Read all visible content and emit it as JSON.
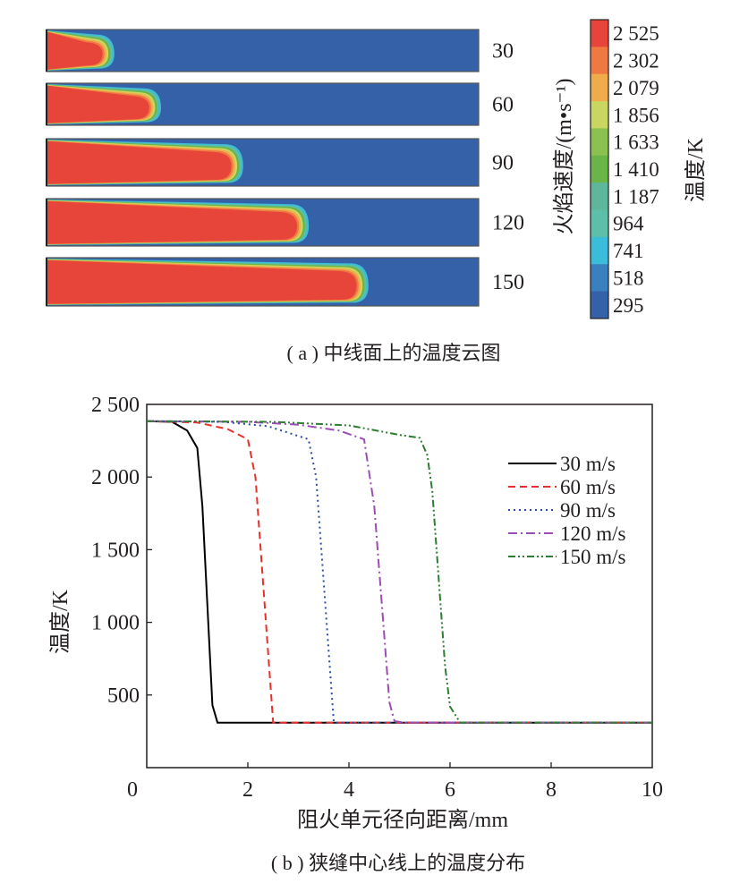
{
  "panel_a": {
    "caption": "( a ) 中线面上的温度云图",
    "velocity_axis_label": "火焰速度/(m•s⁻¹)",
    "colorbar_label": "温度/K",
    "panels": [
      {
        "label": "30",
        "flame_length_fraction": 0.157
      },
      {
        "label": "60",
        "flame_length_fraction": 0.265
      },
      {
        "label": "90",
        "flame_length_fraction": 0.455
      },
      {
        "label": "120",
        "flame_length_fraction": 0.607
      },
      {
        "label": "150",
        "flame_length_fraction": 0.745
      }
    ],
    "colorbar": [
      {
        "label": "2 525",
        "color": "#e8453a"
      },
      {
        "label": "2 302",
        "color": "#ee7a42"
      },
      {
        "label": "2 079",
        "color": "#f0ac4a"
      },
      {
        "label": "1 856",
        "color": "#c9d662"
      },
      {
        "label": "1 633",
        "color": "#8ac151"
      },
      {
        "label": "1 410",
        "color": "#6bb447"
      },
      {
        "label": "1 187",
        "color": "#5fb79b"
      },
      {
        "label": "964",
        "color": "#5ebfa8"
      },
      {
        "label": "741",
        "color": "#3bbcd8"
      },
      {
        "label": "518",
        "color": "#3a7fbe"
      },
      {
        "label": "295",
        "color": "#3461a8"
      }
    ],
    "colors": {
      "background": "#3461a8",
      "core": "#e8453a"
    }
  },
  "chart_data": {
    "type": "line",
    "title": "",
    "caption": "( b ) 狭缝中心线上的温度分布",
    "xlabel": "阻火单元径向距离/mm",
    "ylabel": "温度/K",
    "xlim": [
      0,
      10
    ],
    "ylim": [
      0,
      2500
    ],
    "xticks": [
      {
        "v": 0,
        "label": "0"
      },
      {
        "v": 2,
        "label": "2"
      },
      {
        "v": 4,
        "label": "4"
      },
      {
        "v": 6,
        "label": "6"
      },
      {
        "v": 8,
        "label": "8"
      },
      {
        "v": 10,
        "label": "10"
      }
    ],
    "yticks": [
      {
        "v": 500,
        "label": "500"
      },
      {
        "v": 1000,
        "label": "1 000"
      },
      {
        "v": 1500,
        "label": "1 500"
      },
      {
        "v": 2000,
        "label": "2 000"
      },
      {
        "v": 2500,
        "label": "2 500"
      }
    ],
    "legend_position": "top-right",
    "series": [
      {
        "name": "30 m/s",
        "color": "#000000",
        "dash": "solid",
        "points": [
          [
            0,
            2385
          ],
          [
            0.5,
            2380
          ],
          [
            0.8,
            2320
          ],
          [
            1.0,
            2200
          ],
          [
            1.1,
            1800
          ],
          [
            1.3,
            430
          ],
          [
            1.4,
            310
          ],
          [
            10,
            310
          ]
        ]
      },
      {
        "name": "60 m/s",
        "color": "#e8302b",
        "dash": "dashed",
        "points": [
          [
            0,
            2385
          ],
          [
            1.0,
            2375
          ],
          [
            1.6,
            2330
          ],
          [
            2.0,
            2260
          ],
          [
            2.15,
            2000
          ],
          [
            2.5,
            310
          ],
          [
            10,
            310
          ]
        ]
      },
      {
        "name": "90 m/s",
        "color": "#2b4da0",
        "dash": "dotted",
        "points": [
          [
            0,
            2385
          ],
          [
            1.5,
            2380
          ],
          [
            2.4,
            2350
          ],
          [
            3.2,
            2260
          ],
          [
            3.35,
            2000
          ],
          [
            3.7,
            310
          ],
          [
            10,
            310
          ]
        ]
      },
      {
        "name": "120 m/s",
        "color": "#9b4db3",
        "dash": "dashdot",
        "points": [
          [
            0,
            2385
          ],
          [
            2.0,
            2380
          ],
          [
            3.0,
            2360
          ],
          [
            3.8,
            2320
          ],
          [
            4.3,
            2260
          ],
          [
            4.5,
            1800
          ],
          [
            4.8,
            450
          ],
          [
            4.9,
            320
          ],
          [
            5.1,
            310
          ],
          [
            10,
            310
          ]
        ]
      },
      {
        "name": "150 m/s",
        "color": "#2e7d32",
        "dash": "dashdotdot",
        "points": [
          [
            0,
            2385
          ],
          [
            2.5,
            2380
          ],
          [
            4.0,
            2355
          ],
          [
            5.0,
            2290
          ],
          [
            5.4,
            2270
          ],
          [
            5.55,
            2150
          ],
          [
            5.65,
            1900
          ],
          [
            5.9,
            700
          ],
          [
            6.0,
            420
          ],
          [
            6.2,
            310
          ],
          [
            10,
            310
          ]
        ]
      }
    ]
  }
}
